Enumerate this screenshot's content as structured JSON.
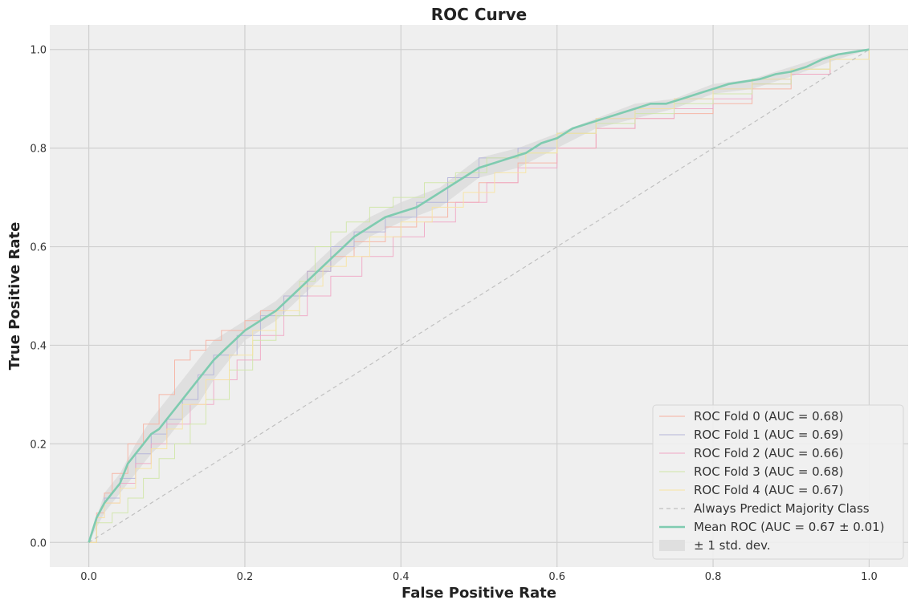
{
  "chart_data": {
    "type": "line",
    "title": "ROC Curve",
    "xlabel": "False Positive Rate",
    "ylabel": "True Positive Rate",
    "xlim": [
      -0.05,
      1.05
    ],
    "ylim": [
      -0.05,
      1.05
    ],
    "xticks": [
      "0.0",
      "0.2",
      "0.4",
      "0.6",
      "0.8",
      "1.0"
    ],
    "yticks": [
      "0.0",
      "0.2",
      "0.4",
      "0.6",
      "0.8",
      "1.0"
    ],
    "grid": true,
    "legend_position": "lower-right",
    "series": [
      {
        "name": "ROC Fold 0 (AUC = 0.68)",
        "color": "#f6b0a0",
        "style": "step",
        "x": [
          0,
          0.01,
          0.02,
          0.03,
          0.05,
          0.07,
          0.09,
          0.11,
          0.13,
          0.15,
          0.17,
          0.2,
          0.22,
          0.25,
          0.28,
          0.31,
          0.34,
          0.38,
          0.42,
          0.46,
          0.5,
          0.55,
          0.6,
          0.65,
          0.7,
          0.75,
          0.8,
          0.85,
          0.9,
          0.95,
          1.0
        ],
        "y": [
          0,
          0.06,
          0.1,
          0.14,
          0.2,
          0.24,
          0.3,
          0.37,
          0.39,
          0.41,
          0.43,
          0.45,
          0.47,
          0.5,
          0.55,
          0.58,
          0.61,
          0.64,
          0.66,
          0.69,
          0.73,
          0.77,
          0.8,
          0.84,
          0.86,
          0.87,
          0.89,
          0.92,
          0.95,
          0.98,
          1.0
        ]
      },
      {
        "name": "ROC Fold 1 (AUC = 0.69)",
        "color": "#b3b3d9",
        "style": "step",
        "x": [
          0,
          0.01,
          0.02,
          0.04,
          0.06,
          0.08,
          0.1,
          0.12,
          0.14,
          0.16,
          0.19,
          0.22,
          0.25,
          0.28,
          0.31,
          0.34,
          0.38,
          0.42,
          0.46,
          0.5,
          0.55,
          0.6,
          0.65,
          0.7,
          0.75,
          0.8,
          0.85,
          0.9,
          0.95,
          1.0
        ],
        "y": [
          0,
          0.05,
          0.09,
          0.13,
          0.18,
          0.22,
          0.25,
          0.29,
          0.34,
          0.38,
          0.42,
          0.46,
          0.5,
          0.55,
          0.6,
          0.63,
          0.66,
          0.69,
          0.74,
          0.78,
          0.8,
          0.83,
          0.86,
          0.88,
          0.9,
          0.92,
          0.94,
          0.96,
          0.98,
          1.0
        ]
      },
      {
        "name": "ROC Fold 2 (AUC = 0.66)",
        "color": "#f0a6c4",
        "style": "step",
        "x": [
          0,
          0.01,
          0.02,
          0.04,
          0.06,
          0.08,
          0.1,
          0.13,
          0.16,
          0.19,
          0.22,
          0.25,
          0.28,
          0.31,
          0.35,
          0.39,
          0.43,
          0.47,
          0.51,
          0.55,
          0.6,
          0.65,
          0.7,
          0.75,
          0.8,
          0.85,
          0.9,
          0.95,
          1.0
        ],
        "y": [
          0,
          0.05,
          0.08,
          0.12,
          0.16,
          0.2,
          0.24,
          0.28,
          0.33,
          0.37,
          0.42,
          0.46,
          0.5,
          0.54,
          0.58,
          0.62,
          0.65,
          0.69,
          0.73,
          0.76,
          0.8,
          0.84,
          0.86,
          0.88,
          0.9,
          0.93,
          0.95,
          0.98,
          1.0
        ]
      },
      {
        "name": "ROC Fold 3 (AUC = 0.68)",
        "color": "#cfe6a6",
        "style": "step",
        "x": [
          0,
          0.01,
          0.03,
          0.05,
          0.07,
          0.09,
          0.11,
          0.13,
          0.15,
          0.18,
          0.21,
          0.24,
          0.27,
          0.29,
          0.31,
          0.33,
          0.36,
          0.39,
          0.43,
          0.47,
          0.51,
          0.55,
          0.6,
          0.65,
          0.7,
          0.75,
          0.8,
          0.85,
          0.9,
          0.95,
          1.0
        ],
        "y": [
          0,
          0.04,
          0.06,
          0.09,
          0.13,
          0.17,
          0.2,
          0.24,
          0.29,
          0.35,
          0.41,
          0.46,
          0.53,
          0.6,
          0.63,
          0.65,
          0.68,
          0.7,
          0.73,
          0.75,
          0.78,
          0.79,
          0.83,
          0.85,
          0.87,
          0.89,
          0.91,
          0.93,
          0.96,
          0.98,
          1.0
        ]
      },
      {
        "name": "ROC Fold 4 (AUC = 0.67)",
        "color": "#f7e3a1",
        "style": "step",
        "x": [
          0,
          0.01,
          0.02,
          0.04,
          0.06,
          0.08,
          0.1,
          0.12,
          0.15,
          0.18,
          0.21,
          0.24,
          0.27,
          0.3,
          0.33,
          0.36,
          0.4,
          0.44,
          0.48,
          0.52,
          0.56,
          0.6,
          0.65,
          0.7,
          0.75,
          0.8,
          0.85,
          0.9,
          0.95,
          1.0
        ],
        "y": [
          0,
          0.05,
          0.08,
          0.11,
          0.15,
          0.19,
          0.23,
          0.28,
          0.33,
          0.38,
          0.43,
          0.47,
          0.52,
          0.56,
          0.58,
          0.62,
          0.65,
          0.68,
          0.71,
          0.75,
          0.79,
          0.83,
          0.86,
          0.88,
          0.9,
          0.92,
          0.94,
          0.96,
          0.98,
          1.0
        ]
      },
      {
        "name": "Always Predict Majority Class",
        "color": "#c0c0c0",
        "style": "dashed",
        "x": [
          0,
          1
        ],
        "y": [
          0,
          1
        ]
      },
      {
        "name": "Mean ROC (AUC = 0.67 ± 0.01)",
        "color": "#7fcbb0",
        "style": "solid",
        "x": [
          0,
          0.01,
          0.02,
          0.03,
          0.04,
          0.05,
          0.06,
          0.07,
          0.08,
          0.09,
          0.1,
          0.12,
          0.14,
          0.16,
          0.18,
          0.2,
          0.22,
          0.24,
          0.26,
          0.28,
          0.3,
          0.32,
          0.34,
          0.36,
          0.38,
          0.4,
          0.42,
          0.44,
          0.46,
          0.48,
          0.5,
          0.52,
          0.54,
          0.56,
          0.58,
          0.6,
          0.62,
          0.64,
          0.66,
          0.68,
          0.7,
          0.72,
          0.74,
          0.76,
          0.78,
          0.8,
          0.82,
          0.84,
          0.86,
          0.88,
          0.9,
          0.92,
          0.94,
          0.96,
          0.98,
          1.0
        ],
        "y": [
          0,
          0.05,
          0.08,
          0.1,
          0.12,
          0.16,
          0.18,
          0.2,
          0.22,
          0.23,
          0.25,
          0.29,
          0.33,
          0.37,
          0.4,
          0.43,
          0.45,
          0.47,
          0.5,
          0.53,
          0.56,
          0.59,
          0.62,
          0.64,
          0.66,
          0.67,
          0.68,
          0.7,
          0.72,
          0.74,
          0.76,
          0.77,
          0.78,
          0.79,
          0.81,
          0.82,
          0.84,
          0.85,
          0.86,
          0.87,
          0.88,
          0.89,
          0.89,
          0.9,
          0.91,
          0.92,
          0.93,
          0.935,
          0.94,
          0.95,
          0.955,
          0.965,
          0.98,
          0.99,
          0.995,
          1.0
        ]
      }
    ],
    "band": {
      "name": "± 1 std. dev.",
      "color": "#d9d9d9",
      "x": [
        0,
        0.02,
        0.04,
        0.06,
        0.08,
        0.1,
        0.12,
        0.14,
        0.16,
        0.18,
        0.2,
        0.24,
        0.28,
        0.32,
        0.36,
        0.4,
        0.45,
        0.5,
        0.55,
        0.6,
        0.65,
        0.7,
        0.75,
        0.8,
        0.85,
        0.9,
        0.95,
        1.0
      ],
      "lower": [
        0,
        0.06,
        0.1,
        0.14,
        0.18,
        0.21,
        0.25,
        0.28,
        0.33,
        0.37,
        0.41,
        0.45,
        0.51,
        0.57,
        0.62,
        0.65,
        0.68,
        0.74,
        0.76,
        0.8,
        0.84,
        0.86,
        0.88,
        0.91,
        0.92,
        0.945,
        0.975,
        1.0
      ],
      "upper": [
        0,
        0.1,
        0.14,
        0.2,
        0.25,
        0.29,
        0.33,
        0.37,
        0.41,
        0.43,
        0.45,
        0.49,
        0.55,
        0.61,
        0.66,
        0.69,
        0.72,
        0.78,
        0.8,
        0.83,
        0.86,
        0.89,
        0.9,
        0.93,
        0.94,
        0.965,
        0.99,
        1.0
      ]
    }
  },
  "style": {
    "plot_bg": "#efefef",
    "grid_color": "#d0d0d0"
  }
}
